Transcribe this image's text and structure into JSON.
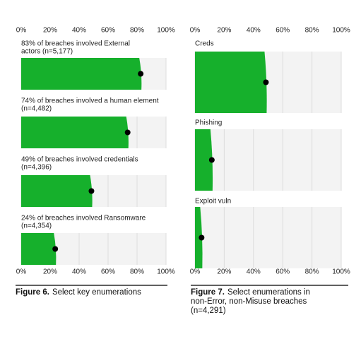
{
  "chart_data": [
    {
      "type": "bar",
      "figure_label": "Figure 6.",
      "caption": "Select key enumerations",
      "categories": [
        [
          "83% of breaches involved External",
          "actors (n=5,177)"
        ],
        [
          "74% of breaches involved a human element",
          "(n=4,482)"
        ],
        [
          "49% of breaches involved credentials",
          "(n=4,396)"
        ],
        [
          "24% of breaches involved Ransomware",
          "(n=4,354)"
        ]
      ],
      "values": [
        83,
        74,
        49,
        24
      ],
      "color": "#16b02c",
      "xlim": [
        0,
        100
      ],
      "xticks": [
        {
          "value": 0,
          "label": "0%"
        },
        {
          "value": 20,
          "label": "20%"
        },
        {
          "value": 40,
          "label": "40%"
        },
        {
          "value": 60,
          "label": "60%"
        },
        {
          "value": 80,
          "label": "80%"
        },
        {
          "value": 100,
          "label": "100%"
        }
      ],
      "grid": true
    },
    {
      "type": "bar",
      "figure_label": "Figure 7.",
      "caption": [
        "Select enumerations in",
        "non-Error, non-Misuse breaches",
        "(n=4,291)"
      ],
      "categories": [
        "Creds",
        "Phishing",
        "Exploit vuln"
      ],
      "values": [
        49,
        12,
        5
      ],
      "color": "#16b02c",
      "xlim": [
        0,
        100
      ],
      "xticks": [
        {
          "value": 0,
          "label": "0%"
        },
        {
          "value": 20,
          "label": "20%"
        },
        {
          "value": 40,
          "label": "40%"
        },
        {
          "value": 60,
          "label": "60%"
        },
        {
          "value": 80,
          "label": "80%"
        },
        {
          "value": 100,
          "label": "100%"
        }
      ],
      "grid": true
    }
  ]
}
